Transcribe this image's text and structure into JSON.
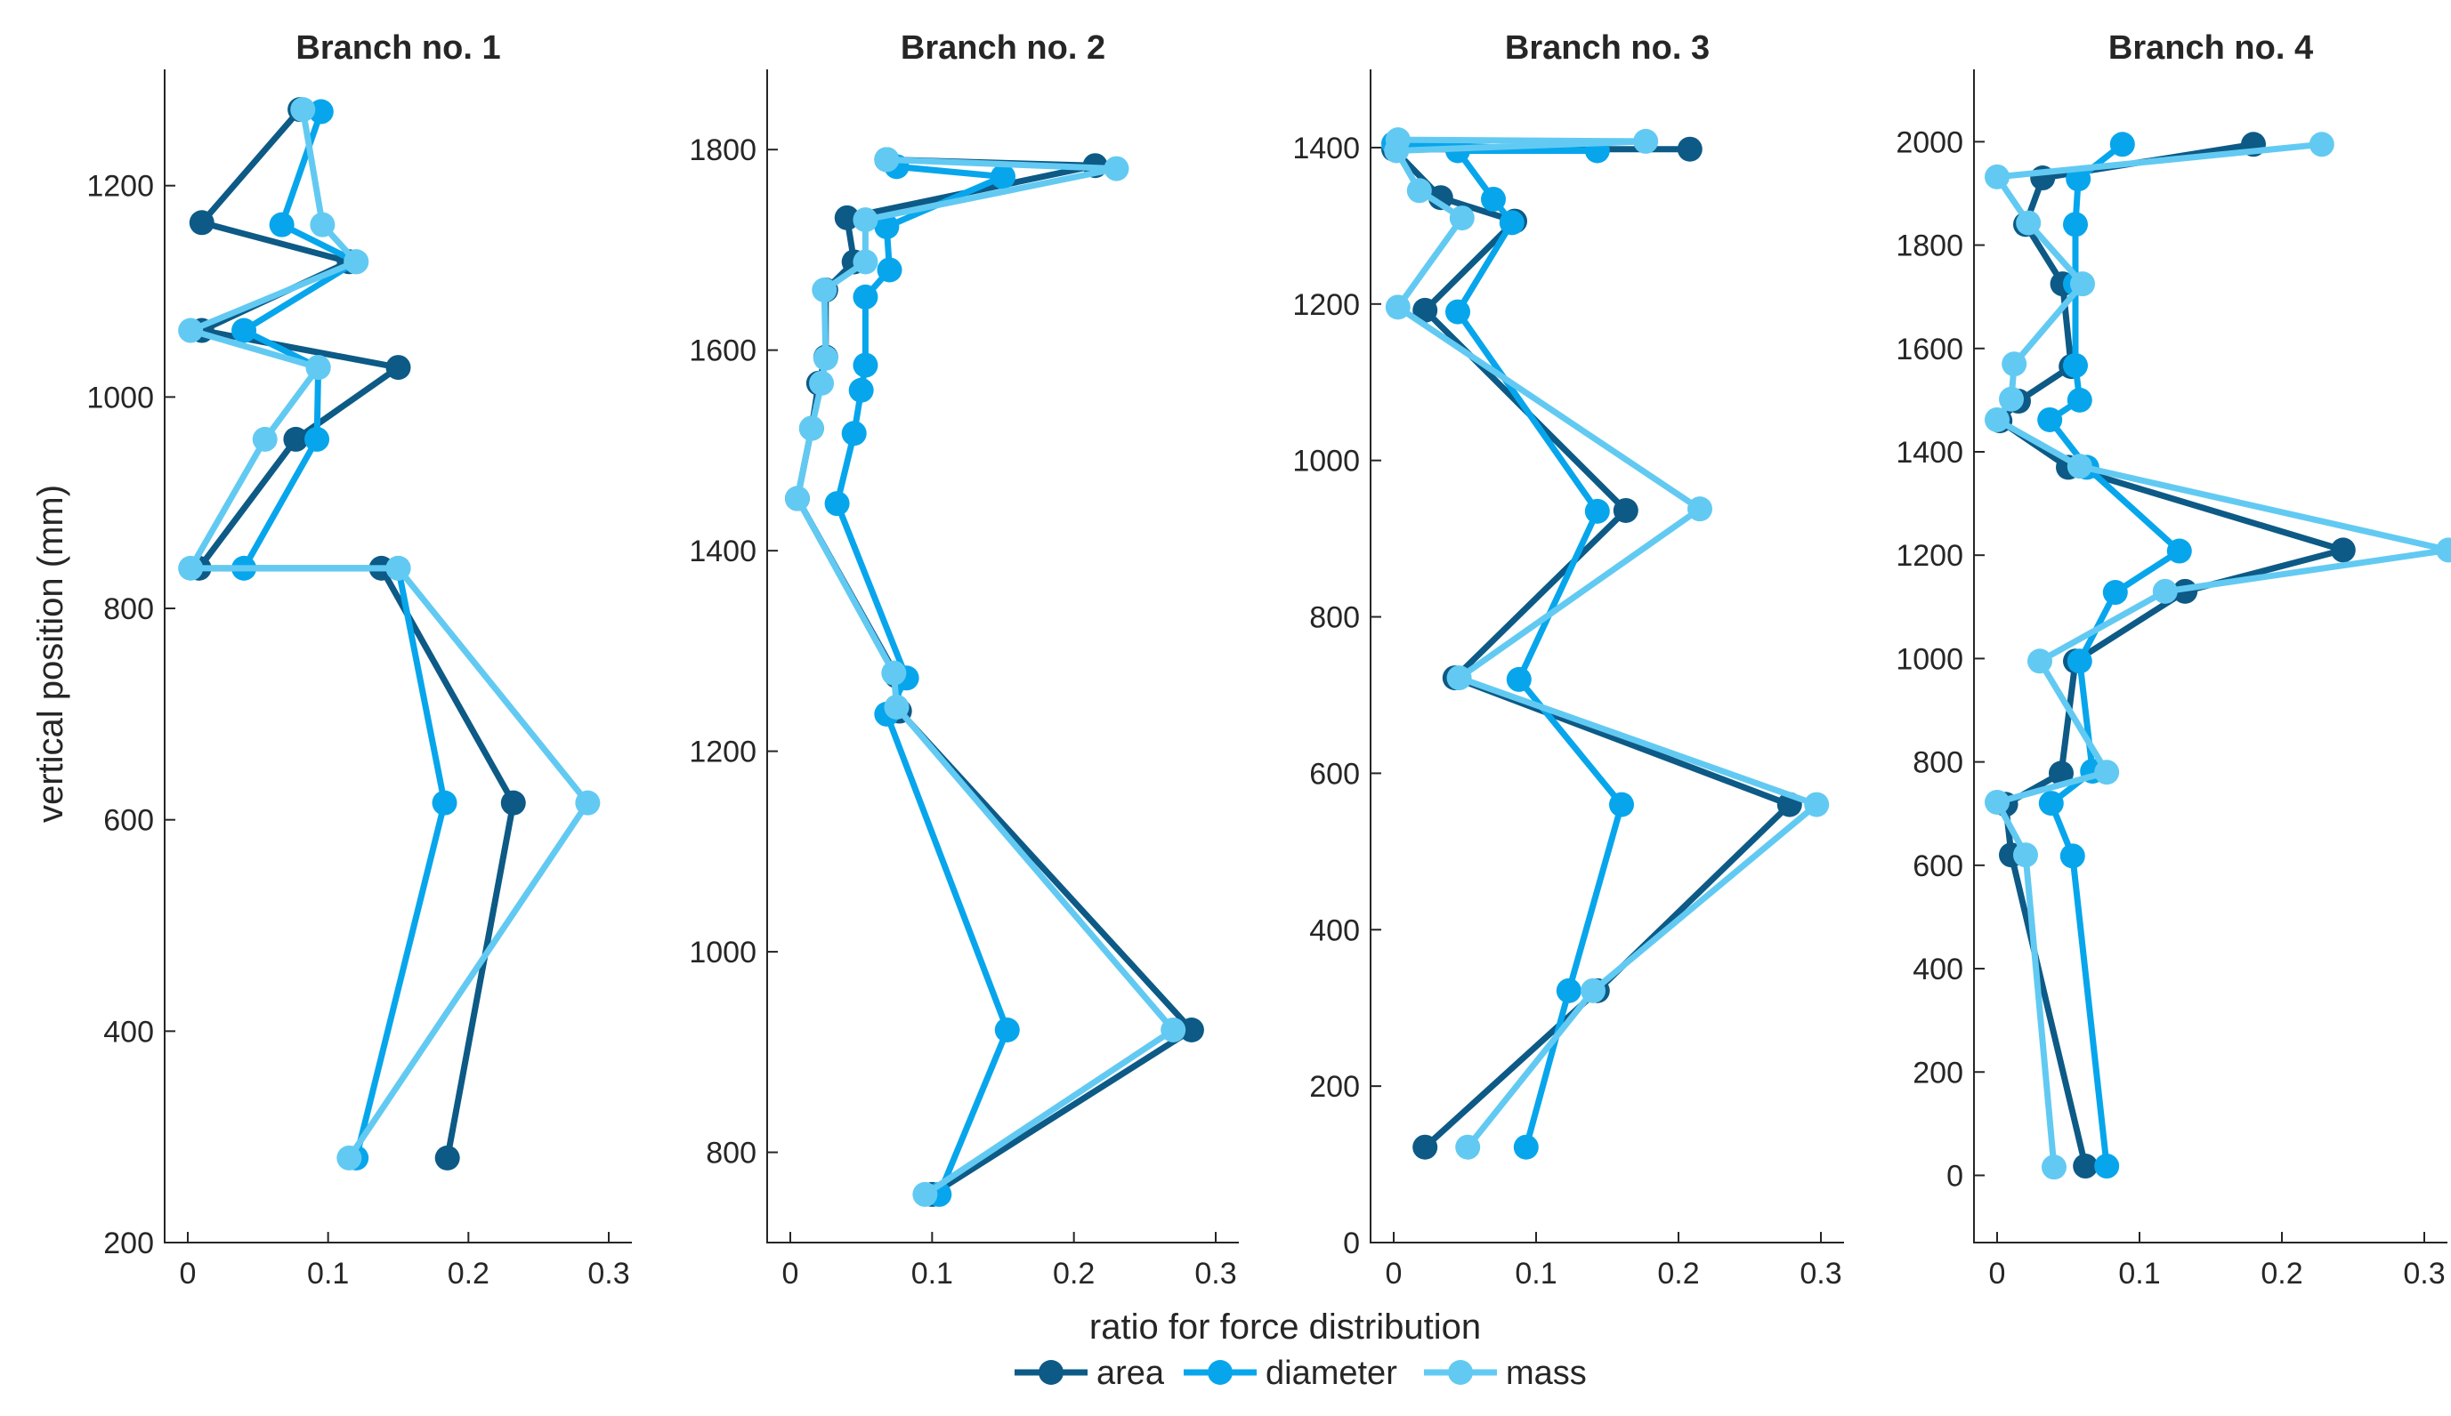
{
  "chart_data": {
    "type": "line",
    "xlabel": "ratio for force distribution",
    "ylabel": "vertical position (mm)",
    "legend": {
      "placement": "bottom-center",
      "entries": [
        {
          "name": "area",
          "color": "#0d5a86"
        },
        {
          "name": "diameter",
          "color": "#07a6ec"
        },
        {
          "name": "mass",
          "color": "#62caf2"
        }
      ]
    },
    "panels": [
      {
        "title": "Branch no. 1",
        "xlim": [
          0,
          0.3
        ],
        "xticks": [
          0,
          0.1,
          0.2,
          0.3
        ],
        "xtick_labels": [
          "0",
          "0.1",
          "0.2",
          "0.3"
        ],
        "ylim": [
          200,
          1310
        ],
        "yticks": [
          200,
          400,
          600,
          800,
          1000,
          1200
        ],
        "ytick_labels": [
          "200",
          "400",
          "600",
          "800",
          "1000",
          "1200"
        ],
        "series": [
          {
            "name": "area",
            "x": [
              0.185,
              0.232,
              0.138,
              0.008,
              0.077,
              0.15,
              0.01,
              0.115,
              0.01,
              0.08
            ],
            "y": [
              280,
              616,
              838,
              838,
              960,
              1028,
              1063,
              1128,
              1165,
              1272
            ]
          },
          {
            "name": "diameter",
            "x": [
              0.12,
              0.183,
              0.15,
              0.04,
              0.092,
              0.093,
              0.04,
              0.12,
              0.067,
              0.095
            ],
            "y": [
              280,
              616,
              838,
              838,
              960,
              1028,
              1063,
              1128,
              1163,
              1270
            ]
          },
          {
            "name": "mass",
            "x": [
              0.115,
              0.285,
              0.15,
              0.002,
              0.055,
              0.093,
              0.002,
              0.12,
              0.096,
              0.082
            ],
            "y": [
              280,
              616,
              838,
              838,
              960,
              1028,
              1063,
              1128,
              1163,
              1272
            ]
          }
        ]
      },
      {
        "title": "Branch no. 2",
        "xlim": [
          0,
          0.3
        ],
        "xticks": [
          0,
          0.1,
          0.2,
          0.3
        ],
        "xtick_labels": [
          "0",
          "0.1",
          "0.2",
          "0.3"
        ],
        "ylim": [
          710,
          1880
        ],
        "yticks": [
          800,
          1000,
          1200,
          1400,
          1600,
          1800
        ],
        "ytick_labels": [
          "800",
          "1000",
          "1200",
          "1400",
          "1600",
          "1800"
        ],
        "series": [
          {
            "name": "area",
            "x": [
              0.1,
              0.283,
              0.077,
              0.075,
              0.005,
              0.015,
              0.02,
              0.025,
              0.025,
              0.045,
              0.04,
              0.215,
              0.068
            ],
            "y": [
              758,
              922,
              1240,
              1275,
              1452,
              1522,
              1567,
              1593,
              1660,
              1688,
              1732,
              1784,
              1790
            ]
          },
          {
            "name": "diameter",
            "x": [
              0.105,
              0.153,
              0.068,
              0.082,
              0.033,
              0.045,
              0.05,
              0.053,
              0.053,
              0.07,
              0.068,
              0.15,
              0.075,
              0.068
            ],
            "y": [
              758,
              922,
              1237,
              1273,
              1447,
              1517,
              1560,
              1585,
              1653,
              1680,
              1723,
              1773,
              1783,
              1790
            ]
          },
          {
            "name": "mass",
            "x": [
              0.095,
              0.27,
              0.075,
              0.073,
              0.005,
              0.015,
              0.022,
              0.025,
              0.024,
              0.053,
              0.053,
              0.23,
              0.068
            ],
            "y": [
              758,
              922,
              1244,
              1278,
              1452,
              1522,
              1567,
              1592,
              1660,
              1688,
              1730,
              1781,
              1790
            ]
          }
        ]
      },
      {
        "title": "Branch no. 3",
        "xlim": [
          0,
          0.3
        ],
        "xticks": [
          0,
          0.1,
          0.2,
          0.3
        ],
        "xtick_labels": [
          "0",
          "0.1",
          "0.2",
          "0.3"
        ],
        "ylim": [
          0,
          1500
        ],
        "yticks": [
          0,
          200,
          400,
          600,
          800,
          1000,
          1200,
          1400
        ],
        "ytick_labels": [
          "0",
          "200",
          "400",
          "600",
          "800",
          "1000",
          "1200",
          "1400"
        ],
        "series": [
          {
            "name": "area",
            "x": [
              0.022,
              0.143,
              0.278,
              0.043,
              0.163,
              0.022,
              0.085,
              0.033,
              0.0,
              0.208
            ],
            "y": [
              122,
              322,
              560,
              722,
              936,
              1192,
              1306,
              1336,
              1398,
              1398
            ]
          },
          {
            "name": "diameter",
            "x": [
              0.093,
              0.123,
              0.16,
              0.088,
              0.143,
              0.045,
              0.083,
              0.07,
              0.045,
              0.143,
              0.0
            ],
            "y": [
              122,
              322,
              560,
              720,
              935,
              1190,
              1304,
              1334,
              1396,
              1396,
              1405
            ]
          },
          {
            "name": "mass",
            "x": [
              0.052,
              0.14,
              0.297,
              0.046,
              0.215,
              0.003,
              0.048,
              0.018,
              0.002,
              0.177,
              0.003
            ],
            "y": [
              122,
              322,
              560,
              722,
              938,
              1196,
              1310,
              1345,
              1396,
              1408,
              1410
            ]
          }
        ]
      },
      {
        "title": "Branch no. 4",
        "xlim": [
          0,
          0.3
        ],
        "xticks": [
          0,
          0.1,
          0.2,
          0.3
        ],
        "xtick_labels": [
          "0",
          "0.1",
          "0.2",
          "0.3"
        ],
        "ylim": [
          -130,
          2140
        ],
        "yticks": [
          0,
          200,
          400,
          600,
          800,
          1000,
          1200,
          1400,
          1600,
          1800,
          2000
        ],
        "ytick_labels": [
          "0",
          "200",
          "400",
          "600",
          "800",
          "1000",
          "1200",
          "1400",
          "1600",
          "1800",
          "2000"
        ],
        "series": [
          {
            "name": "area",
            "x": [
              0.062,
              0.01,
              0.006,
              0.045,
              0.055,
              0.132,
              0.243,
              0.05,
              0.002,
              0.015,
              0.052,
              0.046,
              0.02,
              0.032,
              0.18
            ],
            "y": [
              18,
              620,
              718,
              778,
              995,
              1130,
              1210,
              1370,
              1460,
              1498,
              1565,
              1725,
              1840,
              1930,
              1995
            ]
          },
          {
            "name": "diameter",
            "x": [
              0.077,
              0.053,
              0.038,
              0.067,
              0.058,
              0.083,
              0.128,
              0.063,
              0.037,
              0.058,
              0.055,
              0.055,
              0.055,
              0.057,
              0.088
            ],
            "y": [
              18,
              618,
              720,
              782,
              995,
              1128,
              1208,
              1370,
              1462,
              1500,
              1567,
              1725,
              1840,
              1928,
              1995
            ]
          },
          {
            "name": "mass",
            "x": [
              0.04,
              0.02,
              0.0,
              0.077,
              0.03,
              0.118,
              0.317,
              0.058,
              0.0,
              0.01,
              0.012,
              0.06,
              0.022,
              0.0,
              0.228
            ],
            "y": [
              16,
              620,
              722,
              780,
              995,
              1130,
              1210,
              1372,
              1462,
              1502,
              1570,
              1725,
              1843,
              1932,
              1995
            ]
          }
        ]
      }
    ]
  }
}
